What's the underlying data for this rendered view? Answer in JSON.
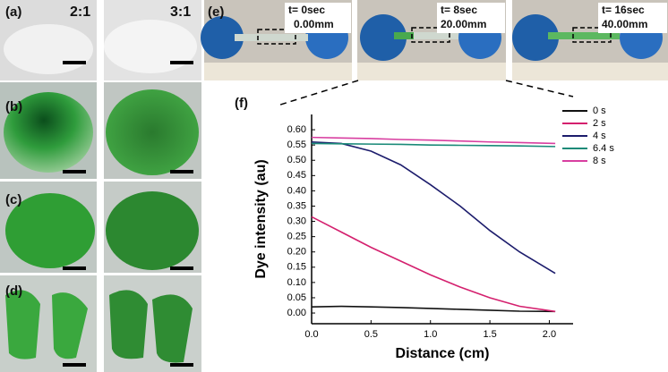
{
  "column_headers": [
    "2:1",
    "3:1"
  ],
  "photo_labels": [
    "(a)",
    "(b)",
    "(c)",
    "(d)"
  ],
  "panel_e": {
    "label": "(e)",
    "frames": [
      {
        "time": "t= 0sec",
        "distance": "0.00mm"
      },
      {
        "time": "t= 8sec",
        "distance": "20.00mm"
      },
      {
        "time": "t= 16sec",
        "distance": "40.00mm"
      }
    ]
  },
  "chart_data": {
    "type": "line",
    "panel_label": "(f)",
    "x_label": "Distance (cm)",
    "y_label": "Dye intensity (au)",
    "x": [
      0,
      0.25,
      0.5,
      0.75,
      1.0,
      1.25,
      1.5,
      1.75,
      2.05
    ],
    "series": [
      {
        "name": "0 s",
        "color": "#111111",
        "values": [
          0.02,
          0.022,
          0.02,
          0.018,
          0.015,
          0.012,
          0.009,
          0.006,
          0.005
        ]
      },
      {
        "name": "2 s",
        "color": "#d4206e",
        "values": [
          0.315,
          0.265,
          0.215,
          0.17,
          0.125,
          0.085,
          0.05,
          0.022,
          0.005
        ]
      },
      {
        "name": "4 s",
        "color": "#1c1c6c",
        "values": [
          0.56,
          0.555,
          0.53,
          0.485,
          0.42,
          0.35,
          0.27,
          0.2,
          0.13
        ]
      },
      {
        "name": "6.4 s",
        "color": "#1a8a78",
        "values": [
          0.555,
          0.554,
          0.553,
          0.552,
          0.55,
          0.549,
          0.548,
          0.547,
          0.545
        ]
      },
      {
        "name": "8 s",
        "color": "#d83ea0",
        "values": [
          0.575,
          0.573,
          0.571,
          0.568,
          0.566,
          0.563,
          0.56,
          0.558,
          0.555
        ]
      }
    ],
    "xlim": [
      0,
      2.2
    ],
    "xticks": [
      {
        "value": 0,
        "label": "0.0"
      },
      {
        "value": 0.5,
        "label": "0.5"
      },
      {
        "value": 1,
        "label": "1.0"
      },
      {
        "value": 1.5,
        "label": "1.5"
      },
      {
        "value": 2,
        "label": "2.0"
      }
    ],
    "ylim": [
      -0.035,
      0.65
    ],
    "yticks": [
      {
        "value": 0,
        "label": "0.00"
      },
      {
        "value": 0.05,
        "label": "0.05"
      },
      {
        "value": 0.1,
        "label": "0.10"
      },
      {
        "value": 0.15,
        "label": "0.15"
      },
      {
        "value": 0.2,
        "label": "0.20"
      },
      {
        "value": 0.25,
        "label": "0.25"
      },
      {
        "value": 0.3,
        "label": "0.30"
      },
      {
        "value": 0.35,
        "label": "0.35"
      },
      {
        "value": 0.4,
        "label": "0.40"
      },
      {
        "value": 0.45,
        "label": "0.45"
      },
      {
        "value": 0.5,
        "label": "0.50"
      },
      {
        "value": 0.55,
        "label": "0.55"
      },
      {
        "value": 0.6,
        "label": "0.60"
      }
    ],
    "legend": "upper right"
  }
}
